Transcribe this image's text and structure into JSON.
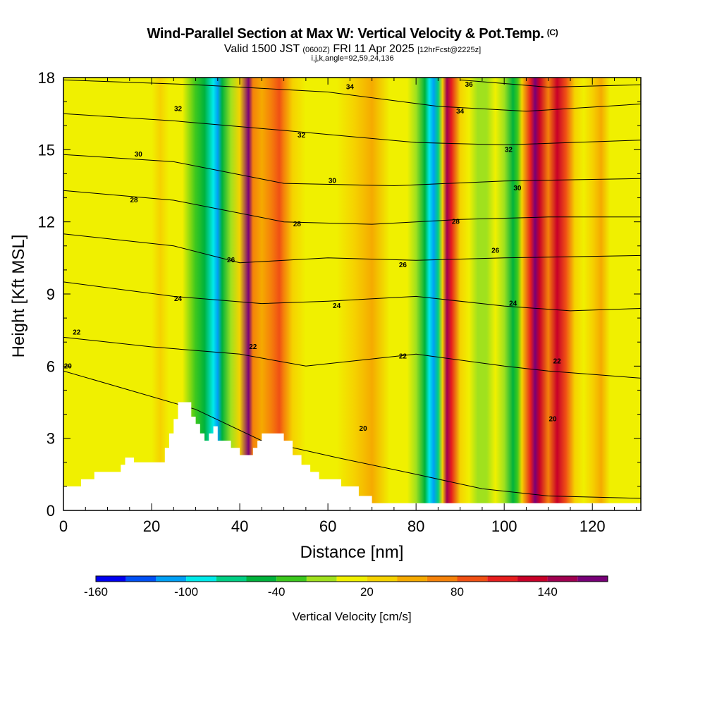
{
  "header": {
    "title": "Wind-Parallel Section at Max W: Vertical Velocity & Pot.Temp.",
    "copyright": "(C)",
    "valid_main": "Valid 1500 JST",
    "valid_utc": "(0600Z)",
    "valid_date": "FRI 11 Apr 2025",
    "fcst": "[12hrFcst@2225z]",
    "indices": "i,j,k,angle=92,59,24,136"
  },
  "chart_data": {
    "type": "heatmap",
    "xlabel": "Distance [nm]",
    "ylabel": "Height [Kft MSL]",
    "xlim": [
      0,
      131
    ],
    "ylim": [
      0,
      18
    ],
    "x_ticks": [
      0,
      20,
      40,
      60,
      80,
      100,
      120
    ],
    "y_ticks": [
      0,
      3,
      6,
      9,
      12,
      15,
      18
    ],
    "colorbar": {
      "label": "Vertical Velocity [cm/s]",
      "tick_labels": [
        "-160",
        "-100",
        "-40",
        "20",
        "80",
        "140"
      ],
      "tick_values": [
        -160,
        -100,
        -40,
        20,
        80,
        140
      ],
      "range": [
        -160,
        180
      ],
      "colors": [
        "#0000f0",
        "#0050f5",
        "#00a0f5",
        "#00eaea",
        "#00cf84",
        "#00b23c",
        "#3cc81e",
        "#a0e11e",
        "#f0f000",
        "#f5d200",
        "#f5aa00",
        "#f5820a",
        "#f05014",
        "#e61e1e",
        "#c80028",
        "#a00050",
        "#780078"
      ]
    },
    "columns_x": [
      0,
      4,
      8,
      12,
      16,
      20,
      22,
      24,
      27,
      30,
      32,
      34,
      35,
      36,
      38,
      40,
      42,
      43,
      45,
      47,
      49,
      50,
      52,
      55,
      58,
      62,
      66,
      70,
      74,
      78,
      80,
      82,
      83,
      84,
      85,
      86,
      87,
      88,
      90,
      92,
      94,
      96,
      98,
      100,
      102,
      103,
      104,
      106,
      107,
      108,
      110,
      112,
      114,
      116,
      118,
      120,
      122,
      124,
      127,
      131
    ],
    "columns_w": [
      5,
      10,
      10,
      5,
      8,
      15,
      25,
      15,
      0,
      -25,
      -55,
      -90,
      -110,
      -60,
      -10,
      30,
      160,
      60,
      55,
      75,
      80,
      70,
      30,
      15,
      10,
      15,
      35,
      40,
      15,
      5,
      -5,
      -60,
      -100,
      -110,
      -80,
      20,
      150,
      110,
      25,
      0,
      -15,
      -10,
      5,
      -20,
      -50,
      -30,
      30,
      100,
      170,
      120,
      60,
      130,
      90,
      30,
      0,
      20,
      50,
      10,
      0,
      0
    ],
    "potential_temperature": {
      "units_note": "contour labels as printed",
      "contours": [
        {
          "label": "20",
          "levels": [
            [
              "0",
              5.8
            ],
            [
              "30",
              4.2
            ],
            [
              "45",
              2.9
            ],
            [
              "62",
              2.2
            ],
            [
              "80",
              1.5
            ],
            [
              "95",
              0.9
            ],
            [
              "110",
              0.6
            ],
            [
              "131",
              0.5
            ]
          ],
          "labels_at": [
            [
              1,
              6.0
            ],
            [
              68,
              3.4
            ],
            [
              111,
              3.8
            ]
          ]
        },
        {
          "label": "22",
          "levels": [
            [
              "0",
              7.2
            ],
            [
              "20",
              6.8
            ],
            [
              "40",
              6.5
            ],
            [
              "55",
              6.0
            ],
            [
              "80",
              6.5
            ],
            [
              "100",
              6.0
            ],
            [
              "110",
              5.8
            ],
            [
              "131",
              5.5
            ]
          ],
          "labels_at": [
            [
              3,
              7.4
            ],
            [
              43,
              6.8
            ],
            [
              77,
              6.4
            ],
            [
              112,
              6.2
            ]
          ]
        },
        {
          "label": "24",
          "levels": [
            [
              "0",
              9.5
            ],
            [
              "25",
              8.9
            ],
            [
              "45",
              8.6
            ],
            [
              "60",
              8.7
            ],
            [
              "80",
              8.9
            ],
            [
              "100",
              8.5
            ],
            [
              "115",
              8.3
            ],
            [
              "131",
              8.4
            ]
          ],
          "labels_at": [
            [
              26,
              8.8
            ],
            [
              62,
              8.5
            ],
            [
              102,
              8.6
            ]
          ]
        },
        {
          "label": "26",
          "levels": [
            [
              "0",
              11.5
            ],
            [
              "25",
              11.0
            ],
            [
              "40",
              10.3
            ],
            [
              "60",
              10.5
            ],
            [
              "80",
              10.4
            ],
            [
              "100",
              10.5
            ],
            [
              "131",
              10.6
            ]
          ],
          "labels_at": [
            [
              38,
              10.4
            ],
            [
              77,
              10.2
            ],
            [
              98,
              10.8
            ]
          ]
        },
        {
          "label": "28",
          "levels": [
            [
              "0",
              13.3
            ],
            [
              "25",
              12.9
            ],
            [
              "50",
              12.0
            ],
            [
              "70",
              11.9
            ],
            [
              "90",
              12.1
            ],
            [
              "110",
              12.2
            ],
            [
              "131",
              12.2
            ]
          ],
          "labels_at": [
            [
              16,
              12.9
            ],
            [
              53,
              11.9
            ],
            [
              89,
              12.0
            ]
          ]
        },
        {
          "label": "30",
          "levels": [
            [
              "0",
              14.8
            ],
            [
              "25",
              14.5
            ],
            [
              "50",
              13.6
            ],
            [
              "75",
              13.5
            ],
            [
              "100",
              13.7
            ],
            [
              "131",
              13.8
            ]
          ],
          "labels_at": [
            [
              17,
              14.8
            ],
            [
              61,
              13.7
            ],
            [
              103,
              13.4
            ]
          ]
        },
        {
          "label": "32",
          "levels": [
            [
              "0",
              16.5
            ],
            [
              "25",
              16.2
            ],
            [
              "50",
              15.8
            ],
            [
              "80",
              15.3
            ],
            [
              "100",
              15.2
            ],
            [
              "131",
              15.4
            ]
          ],
          "labels_at": [
            [
              26,
              16.7
            ],
            [
              54,
              15.6
            ],
            [
              101,
              15.0
            ]
          ]
        },
        {
          "label": "34",
          "levels": [
            [
              "0",
              17.9
            ],
            [
              "30",
              17.7
            ],
            [
              "60",
              17.4
            ],
            [
              "85",
              16.8
            ],
            [
              "105",
              16.6
            ],
            [
              "131",
              16.9
            ]
          ],
          "labels_at": [
            [
              65,
              17.6
            ],
            [
              90,
              16.6
            ]
          ]
        },
        {
          "label": "36",
          "levels": [
            [
              "90",
              17.9
            ],
            [
              "110",
              17.6
            ],
            [
              "131",
              17.7
            ]
          ],
          "labels_at": [
            [
              92,
              17.7
            ]
          ]
        }
      ]
    },
    "terrain_profile": [
      [
        0,
        1.0
      ],
      [
        4,
        1.0
      ],
      [
        4,
        1.3
      ],
      [
        7,
        1.3
      ],
      [
        7,
        1.6
      ],
      [
        13,
        1.6
      ],
      [
        13,
        1.9
      ],
      [
        14,
        1.9
      ],
      [
        14,
        2.2
      ],
      [
        16,
        2.2
      ],
      [
        16,
        2.0
      ],
      [
        23,
        2.0
      ],
      [
        23,
        2.6
      ],
      [
        24,
        2.6
      ],
      [
        24,
        3.2
      ],
      [
        25,
        3.2
      ],
      [
        25,
        3.8
      ],
      [
        26,
        3.8
      ],
      [
        26,
        4.5
      ],
      [
        29,
        4.5
      ],
      [
        29,
        3.9
      ],
      [
        30,
        3.9
      ],
      [
        30,
        3.6
      ],
      [
        31,
        3.6
      ],
      [
        31,
        3.2
      ],
      [
        32,
        3.2
      ],
      [
        32,
        2.9
      ],
      [
        33,
        2.9
      ],
      [
        33,
        3.2
      ],
      [
        34,
        3.2
      ],
      [
        34,
        3.5
      ],
      [
        35,
        3.5
      ],
      [
        35,
        2.9
      ],
      [
        38,
        2.9
      ],
      [
        38,
        2.6
      ],
      [
        40,
        2.6
      ],
      [
        40,
        2.3
      ],
      [
        43,
        2.3
      ],
      [
        43,
        2.6
      ],
      [
        44,
        2.6
      ],
      [
        44,
        2.9
      ],
      [
        45,
        2.9
      ],
      [
        45,
        3.2
      ],
      [
        50,
        3.2
      ],
      [
        50,
        2.9
      ],
      [
        52,
        2.9
      ],
      [
        52,
        2.3
      ],
      [
        54,
        2.3
      ],
      [
        54,
        1.9
      ],
      [
        56,
        1.9
      ],
      [
        56,
        1.6
      ],
      [
        58,
        1.6
      ],
      [
        58,
        1.3
      ],
      [
        63,
        1.3
      ],
      [
        63,
        1.0
      ],
      [
        67,
        1.0
      ],
      [
        67,
        0.6
      ],
      [
        70,
        0.6
      ],
      [
        70,
        0.3
      ],
      [
        131,
        0.3
      ]
    ]
  }
}
